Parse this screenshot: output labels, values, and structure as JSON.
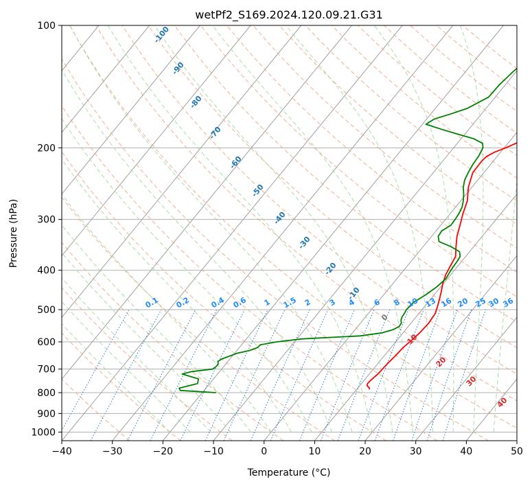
{
  "chart_data": {
    "type": "skew-t",
    "title": "wetPf2_S169.2024.120.09.21.G31",
    "xlabel": "Temperature (°C)",
    "ylabel": "Pressure (hPa)",
    "xlim": [
      -40,
      50
    ],
    "ylim": [
      1050,
      100
    ],
    "y_scale": "log",
    "grid": true,
    "x_ticks": [
      "−40",
      "−30",
      "−20",
      "−10",
      "0",
      "10",
      "20",
      "30",
      "40",
      "50"
    ],
    "x_tick_values": [
      -40,
      -30,
      -20,
      -10,
      0,
      10,
      20,
      30,
      40,
      50
    ],
    "y_ticks": [
      "100",
      "200",
      "300",
      "400",
      "500",
      "600",
      "700",
      "800",
      "900",
      "1000"
    ],
    "y_tick_values": [
      100,
      200,
      300,
      400,
      500,
      600,
      700,
      800,
      900,
      1000
    ],
    "series": [
      {
        "color": "#ff0000",
        "p": [
          785,
          780,
          775,
          770,
          760,
          745,
          720,
          700,
          680,
          650,
          620,
          600,
          570,
          540,
          510,
          490,
          470,
          450,
          430,
          410,
          390,
          370,
          350,
          330,
          310,
          290,
          270,
          250,
          230,
          215,
          210,
          205,
          200,
          190,
          180,
          170,
          160,
          150,
          140,
          130,
          120,
          110,
          100
        ],
        "t": [
          12.5,
          12.3,
          12.0,
          11.5,
          11.2,
          11.3,
          11.7,
          11.8,
          11.9,
          12.2,
          12.4,
          12.8,
          13.3,
          13.5,
          13.2,
          12.5,
          11.7,
          10.8,
          9.8,
          9.0,
          8.5,
          8.0,
          6.5,
          5.0,
          3.8,
          2.5,
          1.3,
          -0.7,
          -2.2,
          -2.3,
          -2.1,
          -1.2,
          0.3,
          3.0,
          3.7,
          4.7,
          6.5,
          8.8,
          11.3,
          16.1,
          19.2,
          21.2,
          22.0
        ]
      },
      {
        "color": "#008000",
        "p": [
          800,
          790,
          780,
          760,
          740,
          720,
          710,
          700,
          690,
          680,
          670,
          660,
          650,
          640,
          630,
          620,
          610,
          600,
          590,
          580,
          570,
          560,
          550,
          540,
          530,
          520,
          510,
          500,
          480,
          460,
          440,
          420,
          400,
          380,
          370,
          360,
          350,
          340,
          330,
          320,
          310,
          300,
          290,
          280,
          270,
          260,
          250,
          240,
          230,
          220,
          210,
          200,
          195,
          190,
          185,
          180,
          175,
          170,
          165,
          160,
          150,
          140,
          130,
          120,
          110,
          100
        ],
        "t": [
          -17.3,
          -24.7,
          -25.3,
          -22.4,
          -23.0,
          -27.0,
          -25.5,
          -21.8,
          -21.5,
          -21.5,
          -22.0,
          -21.5,
          -20.5,
          -19.5,
          -17.5,
          -16.4,
          -16.3,
          -13.5,
          -9.0,
          2.0,
          5.9,
          7.5,
          8.2,
          8.1,
          7.5,
          7.2,
          7.1,
          6.9,
          7.1,
          8.3,
          9.2,
          9.7,
          9.3,
          9.1,
          8.9,
          8.0,
          5.5,
          2.3,
          1.3,
          1.1,
          2.0,
          1.9,
          1.7,
          1.3,
          0.5,
          -0.5,
          -1.7,
          -2.6,
          -3.1,
          -3.5,
          -3.7,
          -4.2,
          -5.0,
          -7.5,
          -11.5,
          -15.5,
          -19.3,
          -18.5,
          -16.0,
          -13.7,
          -11.3,
          -11.2,
          -10.6,
          -9.6,
          -8.5,
          -4.8
        ]
      }
    ],
    "dry_adiabat_labels": [
      "-100",
      "-90",
      "-80",
      "-70",
      "-60",
      "-50",
      "-40",
      "-30",
      "-20",
      "-10"
    ],
    "moist_adiabat_labels": [
      "0",
      "10",
      "20",
      "30",
      "40"
    ],
    "mixing_ratio_labels": [
      "0.1",
      "0.2",
      "0.4",
      "0.6",
      "1",
      "1.5",
      "2",
      "3",
      "4",
      "6",
      "8",
      "10",
      "13",
      "16",
      "20",
      "25",
      "30",
      "36"
    ],
    "colors": {
      "temperature": "#ff0000",
      "dewpoint": "#008000",
      "dry_adiabat": "#f4a582",
      "moist_adiabat": "#a1d99b",
      "mixing_ratio": "#1f78d1",
      "isotherm": "#a0a0a0",
      "dry_label": "#1f77b4",
      "moist_label": "#d62728",
      "mixing_label": "#1f8cff"
    }
  }
}
